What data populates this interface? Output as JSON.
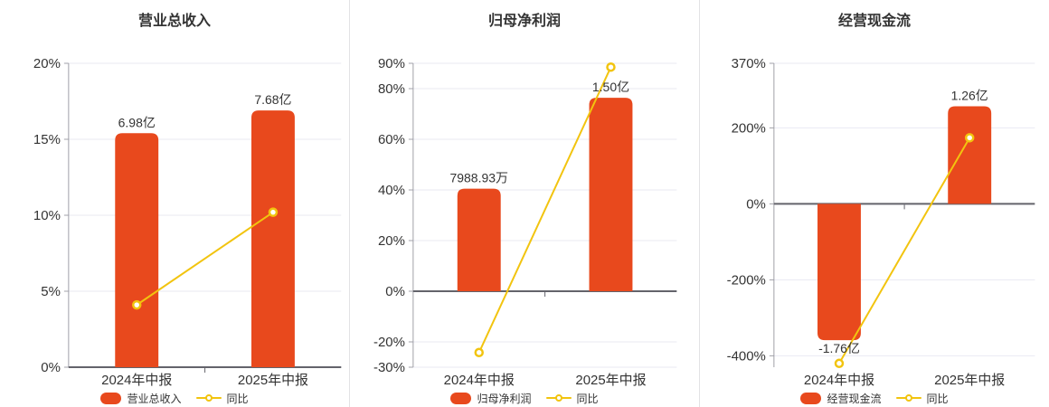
{
  "colors": {
    "bar": "#e8491d",
    "line": "#f2c40f",
    "grid": "#e9e9f2",
    "axis_line": "#a0a0a8",
    "zero_axis": "#63636b",
    "text": "#333333",
    "divider": "#e2e2e5",
    "background": "#ffffff"
  },
  "chart_data": [
    {
      "type": "bar",
      "title": "营业总收入",
      "categories": [
        "2024年中报",
        "2025年中报"
      ],
      "bar_series": {
        "name": "营业总收入",
        "value_labels": [
          "6.98亿",
          "7.68亿"
        ],
        "plotted_axis_values": [
          15.4,
          16.9
        ]
      },
      "line_series": {
        "name": "同比",
        "values_pct": [
          4.1,
          10.2
        ]
      },
      "y_axis": {
        "min": 0,
        "max": 20,
        "ticks": [
          0,
          5,
          10,
          15,
          20
        ],
        "tick_labels": [
          "0%",
          "5%",
          "10%",
          "15%",
          "20%"
        ]
      },
      "legend": [
        "营业总收入",
        "同比"
      ],
      "grid": true,
      "legend_position": "bottom"
    },
    {
      "type": "bar",
      "title": "归母净利润",
      "categories": [
        "2024年中报",
        "2025年中报"
      ],
      "bar_series": {
        "name": "归母净利润",
        "value_labels": [
          "7988.93万",
          "1.50亿"
        ],
        "plotted_axis_values": [
          40.5,
          76.4
        ]
      },
      "line_series": {
        "name": "同比",
        "values_pct": [
          -24.2,
          88.5
        ]
      },
      "y_axis": {
        "min": -30,
        "max": 90,
        "ticks": [
          -30,
          -20,
          0,
          20,
          40,
          60,
          80,
          90
        ],
        "tick_labels": [
          "-30%",
          "-20%",
          "0%",
          "20%",
          "40%",
          "60%",
          "80%",
          "90%"
        ]
      },
      "legend": [
        "归母净利润",
        "同比"
      ],
      "grid": true,
      "legend_position": "bottom"
    },
    {
      "type": "bar",
      "title": "经营现金流",
      "categories": [
        "2024年中报",
        "2025年中报"
      ],
      "bar_series": {
        "name": "经营现金流",
        "value_labels": [
          "-1.76亿",
          "1.26亿"
        ],
        "plotted_axis_values": [
          -359,
          257
        ]
      },
      "line_series": {
        "name": "同比",
        "values_pct": [
          -420,
          174
        ]
      },
      "y_axis": {
        "min": -430,
        "max": 370,
        "ticks": [
          -400,
          -200,
          0,
          200,
          370
        ],
        "tick_labels": [
          "-400%",
          "-200%",
          "0%",
          "200%",
          "370%"
        ]
      },
      "legend": [
        "经营现金流",
        "同比"
      ],
      "grid": true,
      "legend_position": "bottom"
    }
  ]
}
